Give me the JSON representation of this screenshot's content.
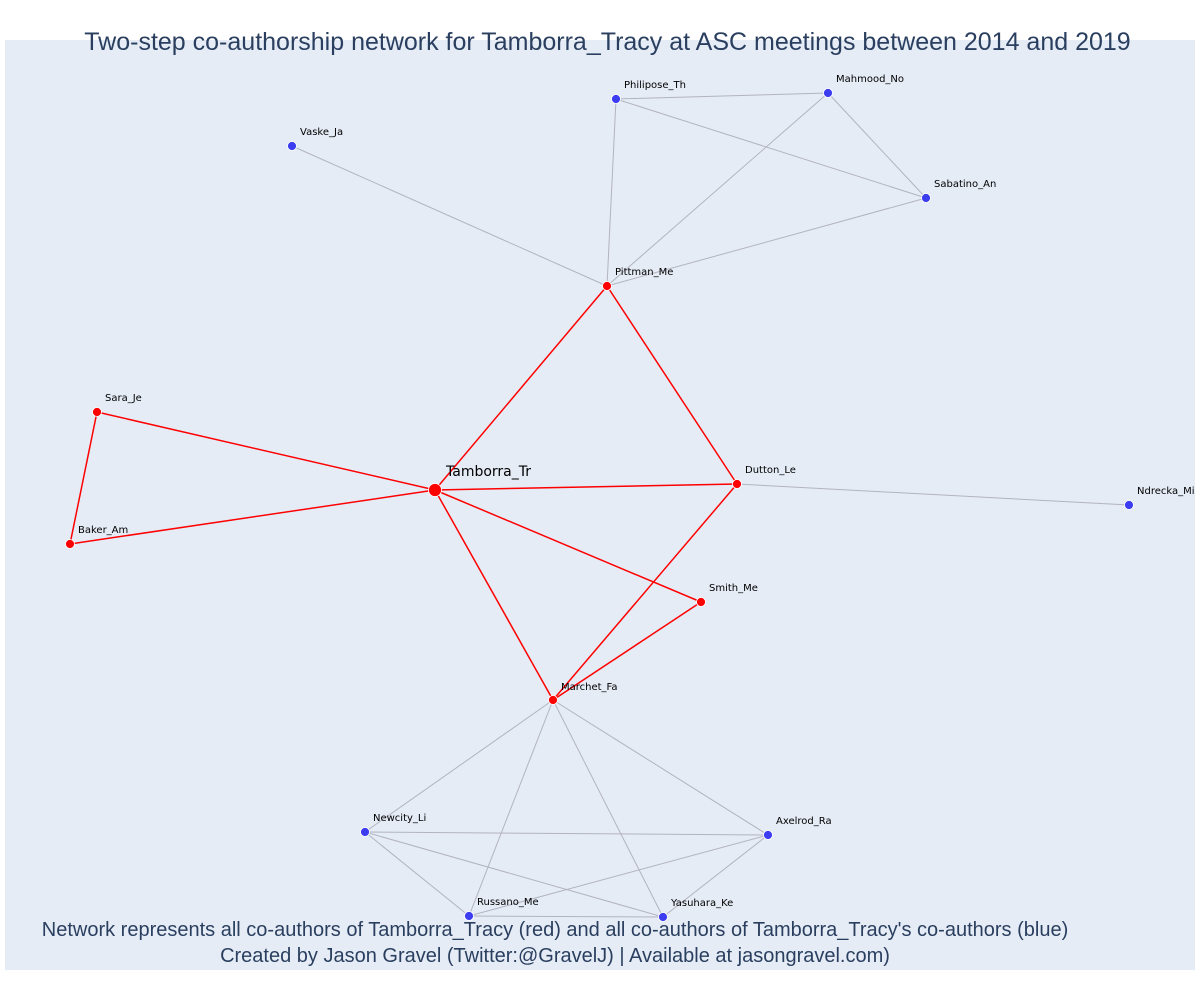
{
  "title": "Two-step co-authorship network for Tamborra_Tracy at ASC meetings between 2014 and 2019",
  "caption": {
    "line1": "Network represents all co-authors of Tamborra_Tracy (red) and all co-authors of Tamborra_Tracy's co-authors (blue)",
    "line2": "Created by Jason Gravel (Twitter:@GravelJ) | Available at jasongravel.com)"
  },
  "colors": {
    "plot_background": "#e5ecf6",
    "first_degree": "#ff0000",
    "second_degree": "#3c3cf0",
    "secondary_edge": "#b3b3c0",
    "text": "#2a3f5f"
  },
  "nodes": [
    {
      "id": "Tamborra_Tr",
      "label": "Tamborra_Tr",
      "group": "focal"
    },
    {
      "id": "Pittman_Me",
      "label": "Pittman_Me",
      "group": "coauthor"
    },
    {
      "id": "Dutton_Le",
      "label": "Dutton_Le",
      "group": "coauthor"
    },
    {
      "id": "Sara_Je",
      "label": "Sara_Je",
      "group": "coauthor"
    },
    {
      "id": "Baker_Am",
      "label": "Baker_Am",
      "group": "coauthor"
    },
    {
      "id": "Smith_Me",
      "label": "Smith_Me",
      "group": "coauthor"
    },
    {
      "id": "Marchet_Fa",
      "label": "Marchet_Fa",
      "group": "coauthor"
    },
    {
      "id": "Philipose_Th",
      "label": "Philipose_Th",
      "group": "second"
    },
    {
      "id": "Mahmood_No",
      "label": "Mahmood_No",
      "group": "second"
    },
    {
      "id": "Sabatino_An",
      "label": "Sabatino_An",
      "group": "second"
    },
    {
      "id": "Vaske_Ja",
      "label": "Vaske_Ja",
      "group": "second"
    },
    {
      "id": "Ndrecka_Mi",
      "label": "Ndrecka_Mi",
      "group": "second"
    },
    {
      "id": "Newcity_Li",
      "label": "Newcity_Li",
      "group": "second"
    },
    {
      "id": "Axelrod_Ra",
      "label": "Axelrod_Ra",
      "group": "second"
    },
    {
      "id": "Russano_Me",
      "label": "Russano_Me",
      "group": "second"
    },
    {
      "id": "Yasuhara_Ke",
      "label": "Yasuhara_Ke",
      "group": "second"
    }
  ],
  "edges": [
    {
      "source": "Tamborra_Tr",
      "target": "Pittman_Me",
      "type": "first"
    },
    {
      "source": "Tamborra_Tr",
      "target": "Dutton_Le",
      "type": "first"
    },
    {
      "source": "Tamborra_Tr",
      "target": "Sara_Je",
      "type": "first"
    },
    {
      "source": "Tamborra_Tr",
      "target": "Baker_Am",
      "type": "first"
    },
    {
      "source": "Tamborra_Tr",
      "target": "Smith_Me",
      "type": "first"
    },
    {
      "source": "Tamborra_Tr",
      "target": "Marchet_Fa",
      "type": "first"
    },
    {
      "source": "Pittman_Me",
      "target": "Dutton_Le",
      "type": "first"
    },
    {
      "source": "Sara_Je",
      "target": "Baker_Am",
      "type": "first"
    },
    {
      "source": "Dutton_Le",
      "target": "Marchet_Fa",
      "type": "first"
    },
    {
      "source": "Smith_Me",
      "target": "Marchet_Fa",
      "type": "first"
    },
    {
      "source": "Pittman_Me",
      "target": "Vaske_Ja",
      "type": "second"
    },
    {
      "source": "Pittman_Me",
      "target": "Philipose_Th",
      "type": "second"
    },
    {
      "source": "Pittman_Me",
      "target": "Mahmood_No",
      "type": "second"
    },
    {
      "source": "Pittman_Me",
      "target": "Sabatino_An",
      "type": "second"
    },
    {
      "source": "Philipose_Th",
      "target": "Mahmood_No",
      "type": "second"
    },
    {
      "source": "Philipose_Th",
      "target": "Sabatino_An",
      "type": "second"
    },
    {
      "source": "Mahmood_No",
      "target": "Sabatino_An",
      "type": "second"
    },
    {
      "source": "Dutton_Le",
      "target": "Ndrecka_Mi",
      "type": "second"
    },
    {
      "source": "Marchet_Fa",
      "target": "Newcity_Li",
      "type": "second"
    },
    {
      "source": "Marchet_Fa",
      "target": "Axelrod_Ra",
      "type": "second"
    },
    {
      "source": "Marchet_Fa",
      "target": "Russano_Me",
      "type": "second"
    },
    {
      "source": "Marchet_Fa",
      "target": "Yasuhara_Ke",
      "type": "second"
    },
    {
      "source": "Newcity_Li",
      "target": "Axelrod_Ra",
      "type": "second"
    },
    {
      "source": "Newcity_Li",
      "target": "Russano_Me",
      "type": "second"
    },
    {
      "source": "Newcity_Li",
      "target": "Yasuhara_Ke",
      "type": "second"
    },
    {
      "source": "Axelrod_Ra",
      "target": "Russano_Me",
      "type": "second"
    },
    {
      "source": "Axelrod_Ra",
      "target": "Yasuhara_Ke",
      "type": "second"
    },
    {
      "source": "Russano_Me",
      "target": "Yasuhara_Ke",
      "type": "second"
    }
  ]
}
